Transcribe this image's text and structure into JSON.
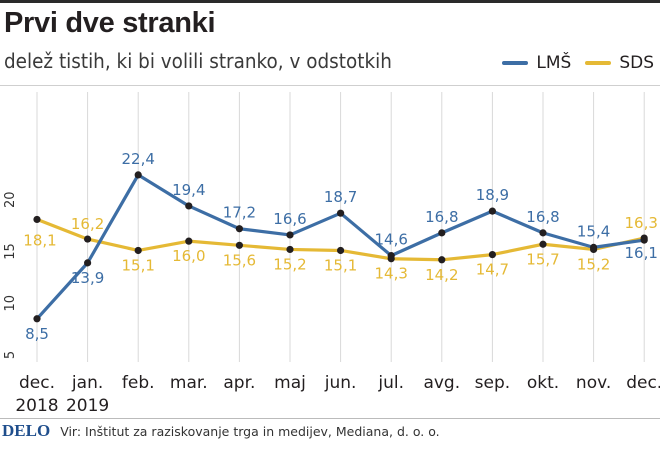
{
  "header": {
    "title": "Prvi dve stranki",
    "subtitle": "delež tistih, ki bi volili stranko, v odstotkih"
  },
  "legend": [
    {
      "label": "LMŠ",
      "color": "#3d6ea5"
    },
    {
      "label": "SDS",
      "color": "#e5b935"
    }
  ],
  "footer": {
    "brand": "DELO",
    "source": "Vir: Inštitut za raziskovanje trga in medijev, Mediana, d. o. o."
  },
  "chart_data": {
    "type": "line",
    "title": "Prvi dve stranki",
    "subtitle": "delež tistih, ki bi volili stranko, v odstotkih",
    "categories": [
      [
        "dec.",
        "2018"
      ],
      [
        "jan.",
        "2019"
      ],
      [
        "feb."
      ],
      [
        "mar."
      ],
      [
        "apr."
      ],
      [
        "maj"
      ],
      [
        "jun."
      ],
      [
        "jul."
      ],
      [
        "avg."
      ],
      [
        "sep."
      ],
      [
        "okt."
      ],
      [
        "nov."
      ],
      [
        "dec."
      ]
    ],
    "yticks": [
      "5",
      "10",
      "15",
      "20"
    ],
    "ylim": [
      5,
      25
    ],
    "grid": true,
    "legend_position": "top-right",
    "series": [
      {
        "name": "LMŠ",
        "color": "#3d6ea5",
        "values": [
          8.5,
          13.9,
          22.4,
          19.4,
          17.2,
          16.6,
          18.7,
          14.6,
          16.8,
          18.9,
          16.8,
          15.4,
          16.1
        ],
        "labels": [
          "8,5",
          "13,9",
          "22,4",
          "19,4",
          "17,2",
          "16,6",
          "18,7",
          "14,6",
          "16,8",
          "18,9",
          "16,8",
          "15,4",
          "16,1"
        ]
      },
      {
        "name": "SDS",
        "color": "#e5b935",
        "values": [
          18.1,
          16.2,
          15.1,
          16.0,
          15.6,
          15.2,
          15.1,
          14.3,
          14.2,
          14.7,
          15.7,
          15.2,
          16.3
        ],
        "labels": [
          "18,1",
          "16,2",
          "15,1",
          "16,0",
          "15,6",
          "15,2",
          "15,1",
          "14,3",
          "14,2",
          "14,7",
          "15,7",
          "15,2",
          "16,3"
        ]
      }
    ]
  }
}
